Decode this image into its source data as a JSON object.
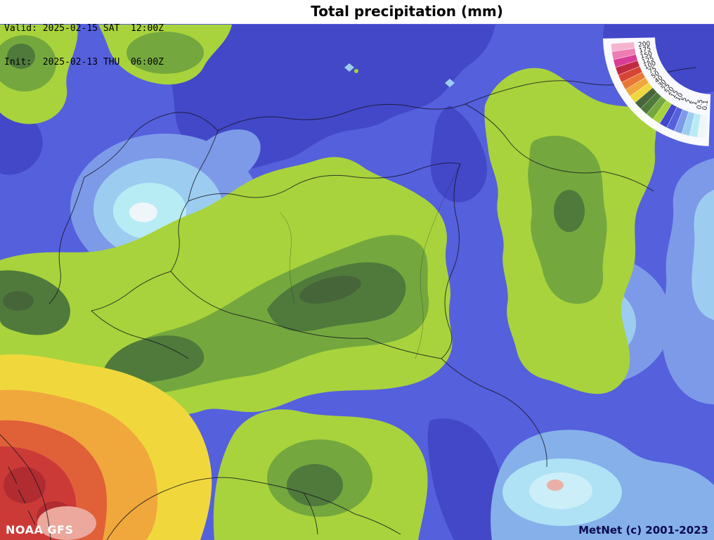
{
  "header": {
    "valid_line": "Valid: 2025-02-15 SAT  12:00Z",
    "init_line": "Init:  2025-02-13 THU  06:00Z",
    "title": "Total precipitation (mm)"
  },
  "footer": {
    "model": "NOAA GFS",
    "credit": "MetNet (c) 2001-2023"
  },
  "legend": {
    "entries": [
      {
        "value": "200",
        "color": "#f4b4d0"
      },
      {
        "value": "175",
        "color": "#ee7cb4"
      },
      {
        "value": "150",
        "color": "#d83c94"
      },
      {
        "value": "125",
        "color": "#c02a40"
      },
      {
        "value": "100",
        "color": "#d84434"
      },
      {
        "value": "75",
        "color": "#e87838"
      },
      {
        "value": "50",
        "color": "#f0a83c"
      },
      {
        "value": "40",
        "color": "#f0d83c"
      },
      {
        "value": "30",
        "color": "#46663a"
      },
      {
        "value": "25",
        "color": "#4f7a3c"
      },
      {
        "value": "20",
        "color": "#74a83e"
      },
      {
        "value": "15",
        "color": "#a8d33c"
      },
      {
        "value": "10",
        "color": "#4348c8"
      },
      {
        "value": "5",
        "color": "#5560dd"
      },
      {
        "value": "2",
        "color": "#7d9ae8"
      },
      {
        "value": "1",
        "color": "#9ccdf0"
      },
      {
        "value": "0.5",
        "color": "#b8ecf4"
      },
      {
        "value": "0.1",
        "color": "#eef6fa"
      }
    ]
  },
  "map": {
    "base_color": "#5560dd",
    "border_color": "#14141f"
  }
}
